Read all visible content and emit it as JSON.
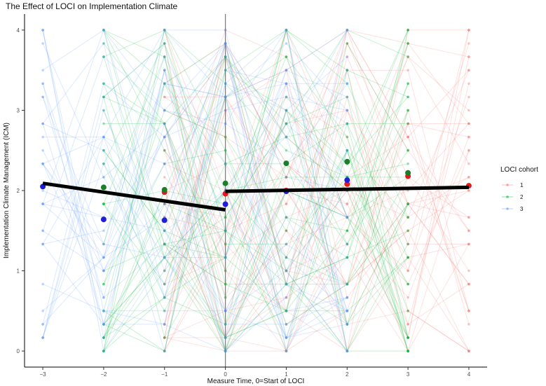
{
  "chart_data": {
    "type": "line",
    "title": "The Effect of LOCI on Implementation Climate",
    "xlabel": "Measure Time, 0=Start of LOCI",
    "ylabel": "Implementation Climate Management (ICM)",
    "xlim": [
      -3.3,
      4.3
    ],
    "ylim": [
      -0.2,
      4.2
    ],
    "xticks": [
      -3,
      -2,
      -1,
      0,
      1,
      2,
      3,
      4
    ],
    "yticks": [
      0,
      1,
      2,
      3,
      4
    ],
    "vline_x": 0,
    "grid": false,
    "legend": {
      "title": "LOCI cohort",
      "placement": "right",
      "entries": [
        {
          "label": "1",
          "color": "#F8766D"
        },
        {
          "label": "2",
          "color": "#00BA38"
        },
        {
          "label": "3",
          "color": "#619CFF"
        }
      ]
    },
    "cohort_times": {
      "1": [
        -1,
        0,
        1,
        2,
        3,
        4
      ],
      "2": [
        -2,
        -1,
        0,
        1,
        2,
        3
      ],
      "3": [
        -3,
        -2,
        -1,
        0,
        1,
        2
      ]
    },
    "individual_trajectories_note": "faint per-participant lines drawn for each cohort; values on grid of 1/6",
    "mean_points": {
      "series": [
        {
          "name": "1",
          "color": "#E41A1C",
          "x": [
            -1,
            0,
            1,
            2,
            3,
            4
          ],
          "y": [
            1.98,
            1.96,
            2.0,
            2.08,
            2.18,
            2.06
          ]
        },
        {
          "name": "2",
          "color": "#1B7F2A",
          "x": [
            -2,
            -1,
            0,
            1,
            2,
            3
          ],
          "y": [
            2.04,
            2.01,
            2.09,
            2.34,
            2.36,
            2.22
          ]
        },
        {
          "name": "3",
          "color": "#1F1FD6",
          "x": [
            -3,
            -2,
            -1,
            0,
            1,
            2
          ],
          "y": [
            2.05,
            1.64,
            1.63,
            1.83,
            1.99,
            2.13
          ]
        }
      ]
    },
    "fitted_segments": [
      {
        "name": "pre-LOCI fit",
        "x": [
          -3,
          0
        ],
        "y": [
          2.09,
          1.76
        ]
      },
      {
        "name": "post-LOCI fit",
        "x": [
          0,
          4
        ],
        "y": [
          1.99,
          2.04
        ]
      }
    ]
  }
}
